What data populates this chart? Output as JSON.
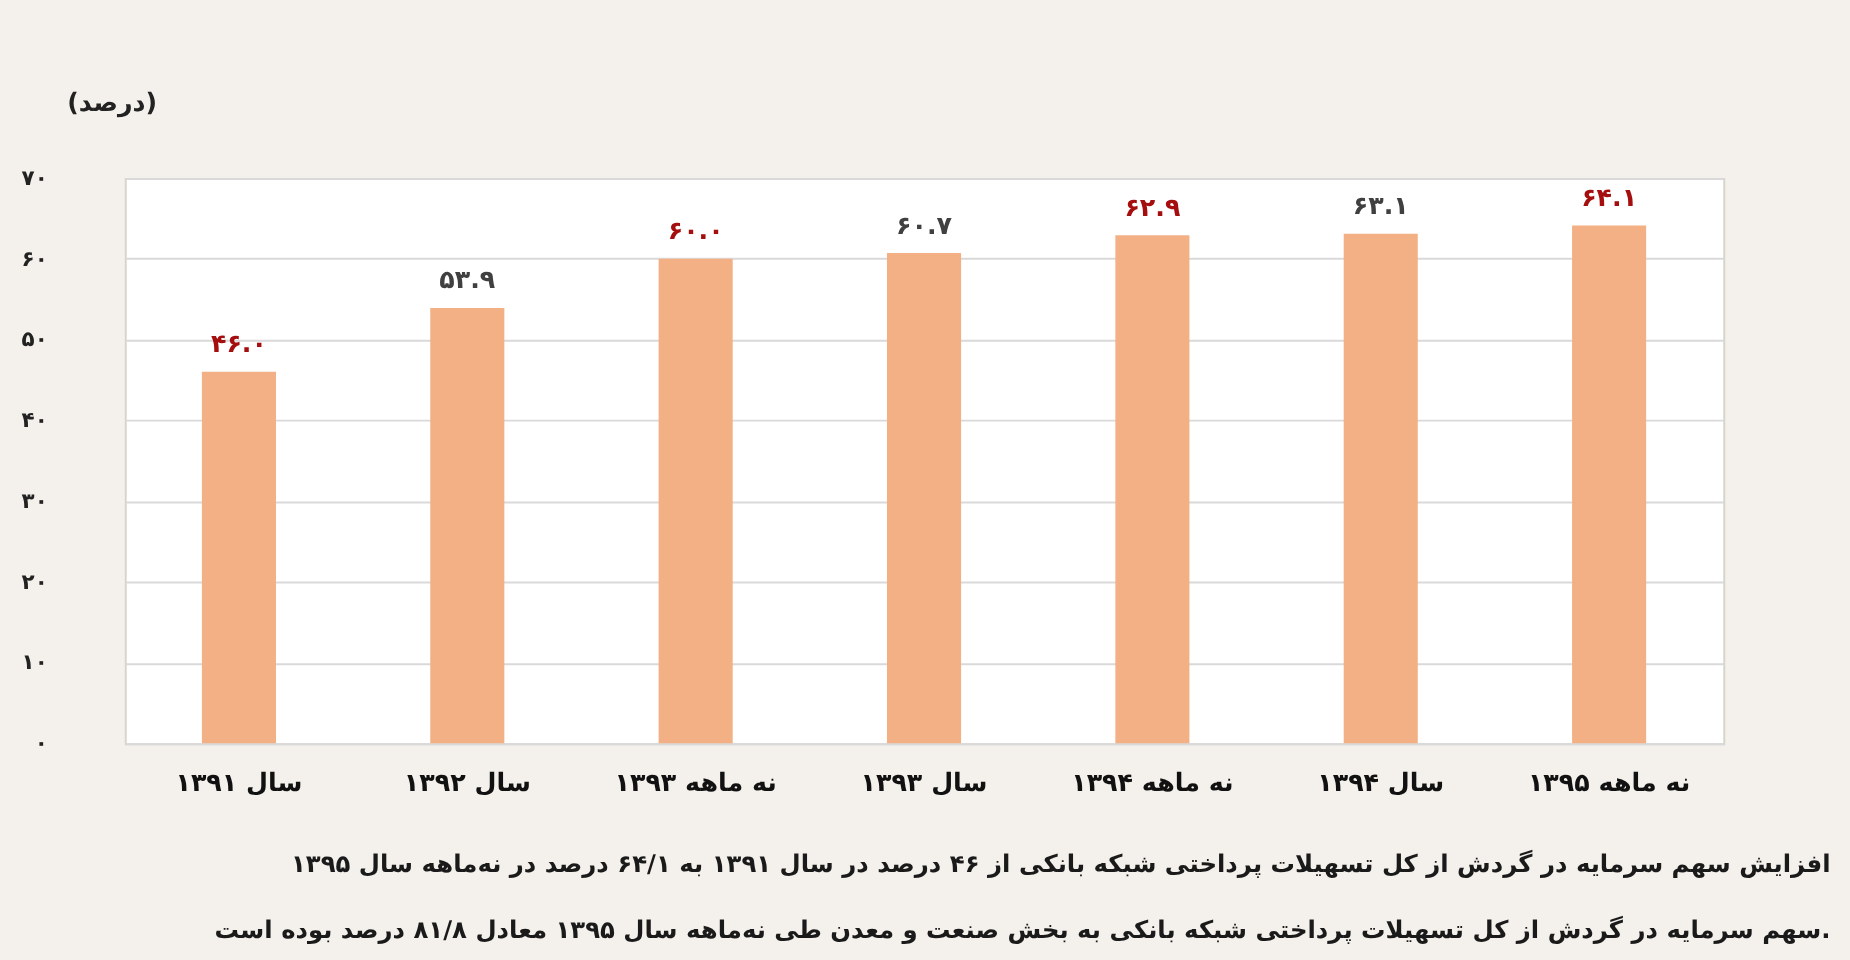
{
  "chart_data": {
    "type": "bar",
    "ylabel": "(درصد)",
    "categories": [
      "سال ۱۳۹۱",
      "سال ۱۳۹۲",
      "نه ماهه ۱۳۹۳",
      "سال ۱۳۹۳",
      "نه ماهه ۱۳۹۴",
      "سال ۱۳۹۴",
      "نه ماهه ۱۳۹۵"
    ],
    "values": [
      46.0,
      53.9,
      60.0,
      60.7,
      62.9,
      63.1,
      64.1
    ],
    "value_labels": [
      "۴۶.۰",
      "۵۳.۹",
      "۶۰.۰",
      "۶۰.۷",
      "۶۲.۹",
      "۶۳.۱",
      "۶۴.۱"
    ],
    "color": "#f2b084",
    "ylim": [
      0,
      70
    ],
    "yticks": [
      {
        "value": 0,
        "label": "۰"
      },
      {
        "value": 10,
        "label": "۱۰"
      },
      {
        "value": 20,
        "label": "۲۰"
      },
      {
        "value": 30,
        "label": "۳۰"
      },
      {
        "value": 40,
        "label": "۴۰"
      },
      {
        "value": 50,
        "label": "۵۰"
      },
      {
        "value": 60,
        "label": "۶۰"
      },
      {
        "value": 70,
        "label": "۷۰"
      }
    ],
    "grid": "y",
    "annotations": [
      "افزایش سهم سرمایه در گردش از کل تسهیلات پرداختی شبکه بانکی از ۴۶ درصد در سال ۱۳۹۱ به ۶۴/۱ درصد در نه‌ماهه سال ۱۳۹۵",
      "سهم سرمایه در گردش از کل تسهیلات پرداختی شبکه بانکی به بخش صنعت و معدن طی نه‌ماهه سال ۱۳۹۵ معادل ۸۱/۸ درصد بوده است."
    ]
  }
}
